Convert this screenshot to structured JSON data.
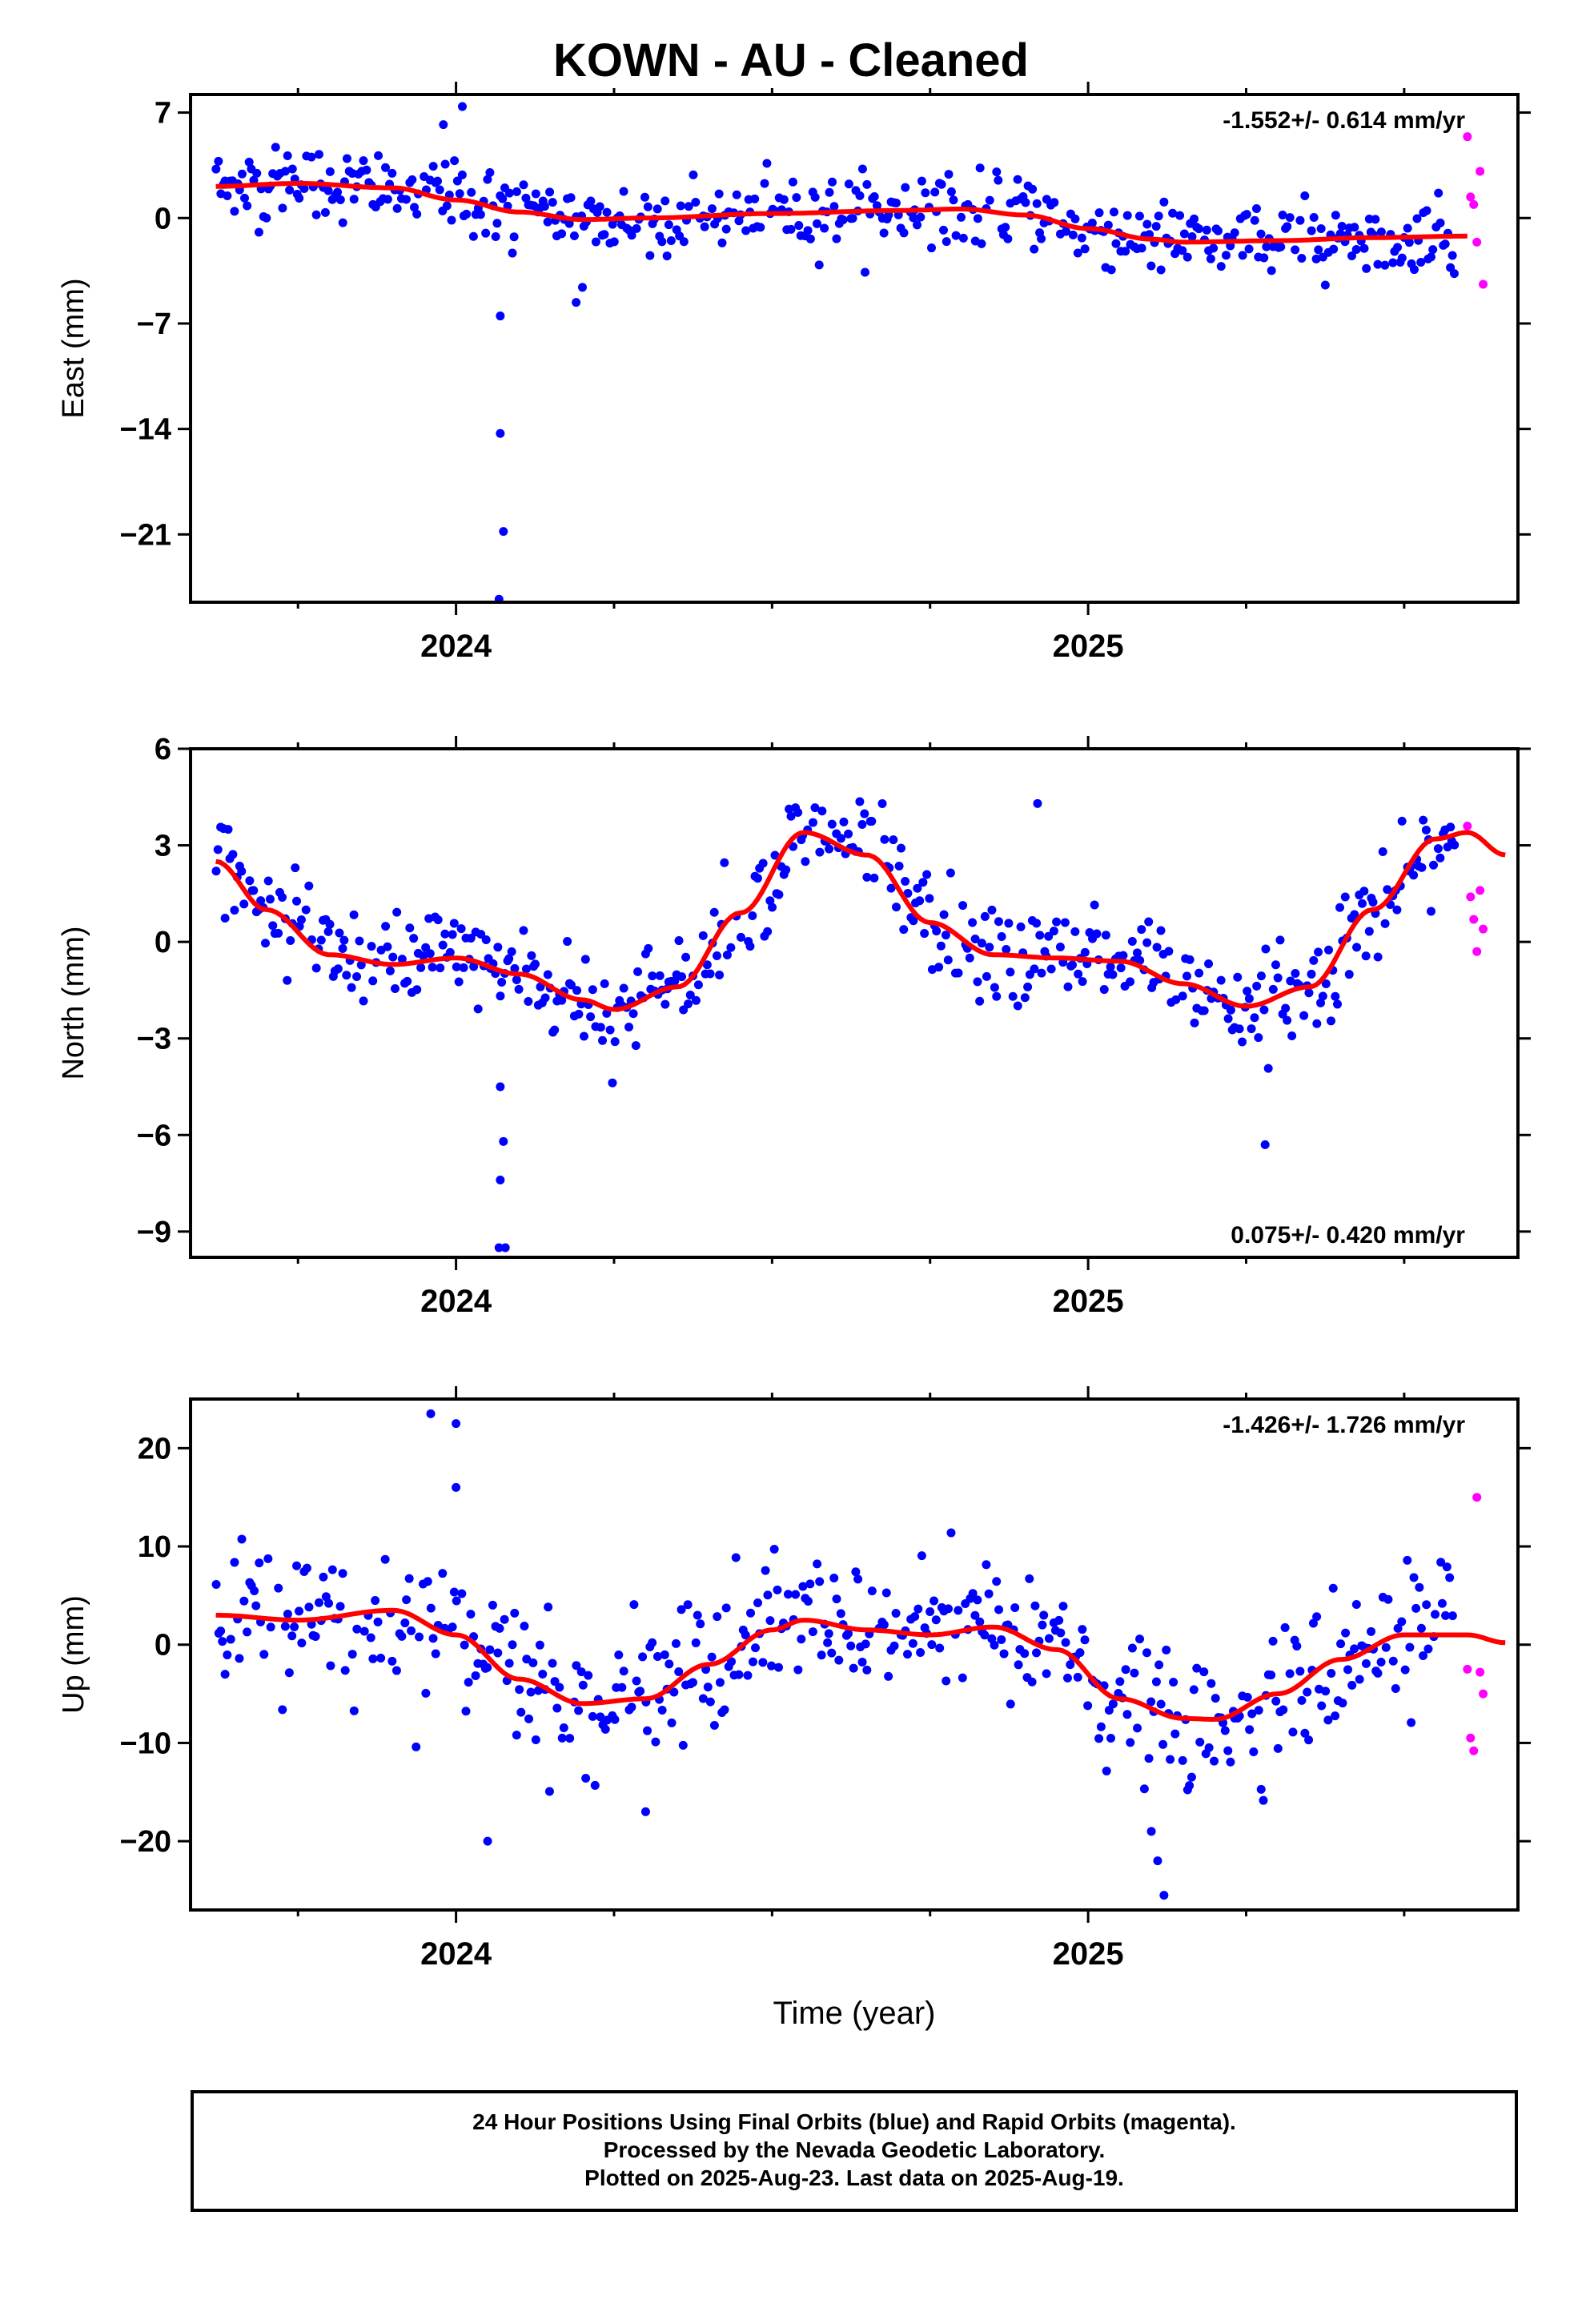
{
  "title": "KOWN  - AU - Cleaned",
  "footer": {
    "line1": "24 Hour Positions Using Final Orbits (blue) and Rapid Orbits (magenta).",
    "line2": "Processed by the Nevada Geodetic Laboratory.",
    "line3": "Plotted on 2025-Aug-23. Last data on 2025-Aug-19."
  },
  "colors": {
    "final": "#0000ff",
    "rapid": "#ff00ff",
    "fit": "#ff0000"
  },
  "chart_data": [
    {
      "type": "scatter",
      "component": "East",
      "ylabel": "East (mm)",
      "xlabel": "",
      "rate_label": "-1.552+/- 0.614 mm/yr",
      "rate_position": "top-right",
      "xlim": [
        2023.58,
        2025.68
      ],
      "ylim": [
        -25.5,
        8.2
      ],
      "yticks": [
        7,
        0,
        -7,
        -14,
        -21
      ],
      "xticks": [
        2024,
        2025
      ],
      "fit_curve": {
        "x": [
          2023.62,
          2023.75,
          2023.9,
          2024.0,
          2024.1,
          2024.2,
          2024.3,
          2024.5,
          2024.7,
          2024.8,
          2024.9,
          2025.0,
          2025.1,
          2025.15,
          2025.3,
          2025.45,
          2025.6
        ],
        "y": [
          2.1,
          2.3,
          2.0,
          1.2,
          0.4,
          -0.1,
          0.0,
          0.3,
          0.5,
          0.6,
          0.2,
          -0.7,
          -1.4,
          -1.6,
          -1.5,
          -1.3,
          -1.2
        ]
      },
      "final_trend_points": {
        "x": [
          2023.62,
          2023.75,
          2023.9,
          2024.0,
          2024.1,
          2024.2,
          2024.3,
          2024.5,
          2024.7,
          2024.8,
          2024.9,
          2025.0,
          2025.1,
          2025.15,
          2025.3,
          2025.45,
          2025.58
        ],
        "y": [
          2.1,
          2.3,
          2.0,
          1.2,
          0.4,
          -0.1,
          0.0,
          0.3,
          0.5,
          0.6,
          0.2,
          -0.7,
          -1.4,
          -1.6,
          -1.5,
          -1.3,
          -1.2
        ]
      },
      "scatter_sd": 1.2,
      "outliers": {
        "x": [
          2024.07,
          2024.07,
          2024.075,
          2024.068,
          2023.98,
          2024.01,
          2024.19,
          2024.2
        ],
        "y": [
          -6.5,
          -14.3,
          -20.8,
          -25.3,
          6.2,
          7.4,
          -5.6,
          -4.6
        ]
      },
      "rapid": {
        "x": [
          2025.6,
          2025.605,
          2025.61,
          2025.615,
          2025.62,
          2025.625
        ],
        "y": [
          5.4,
          1.4,
          0.9,
          -1.6,
          3.1,
          -4.4
        ]
      }
    },
    {
      "type": "scatter",
      "component": "North",
      "ylabel": "North (mm)",
      "xlabel": "",
      "rate_label": "0.075+/- 0.420 mm/yr",
      "rate_position": "bottom-right",
      "xlim": [
        2023.58,
        2025.68
      ],
      "ylim": [
        -9.8,
        6.0
      ],
      "yticks": [
        6,
        3,
        0,
        -3,
        -6,
        -9
      ],
      "xticks": [
        2024,
        2025
      ],
      "fit_curve": {
        "x": [
          2023.62,
          2023.7,
          2023.8,
          2023.9,
          2024.0,
          2024.1,
          2024.2,
          2024.25,
          2024.35,
          2024.45,
          2024.55,
          2024.65,
          2024.75,
          2024.85,
          2024.95,
          2025.05,
          2025.15,
          2025.25,
          2025.35,
          2025.45,
          2025.55,
          2025.6,
          2025.66
        ],
        "y": [
          2.5,
          1.0,
          -0.4,
          -0.7,
          -0.5,
          -1.0,
          -1.8,
          -2.1,
          -1.4,
          0.9,
          3.4,
          2.7,
          0.6,
          -0.4,
          -0.5,
          -0.6,
          -1.3,
          -2.0,
          -1.4,
          1.0,
          3.2,
          3.4,
          2.7
        ]
      },
      "final_trend_points": {
        "x": [
          2023.62,
          2023.7,
          2023.8,
          2023.9,
          2024.0,
          2024.1,
          2024.2,
          2024.25,
          2024.35,
          2024.45,
          2024.55,
          2024.65,
          2024.75,
          2024.85,
          2024.95,
          2025.05,
          2025.15,
          2025.25,
          2025.35,
          2025.45,
          2025.58
        ],
        "y": [
          2.5,
          1.0,
          -0.4,
          -0.7,
          -0.5,
          -1.0,
          -1.8,
          -2.1,
          -1.4,
          0.9,
          3.4,
          2.7,
          0.6,
          -0.4,
          -0.5,
          -0.6,
          -1.3,
          -2.0,
          -1.4,
          1.0,
          3.3
        ]
      },
      "scatter_sd": 0.8,
      "outliers": {
        "x": [
          2024.07,
          2024.07,
          2024.075,
          2024.078,
          2024.068,
          2025.28,
          2024.92
        ],
        "y": [
          -4.5,
          -7.4,
          -6.2,
          -9.5,
          -9.5,
          -6.3,
          4.3
        ]
      },
      "rapid": {
        "x": [
          2025.6,
          2025.605,
          2025.61,
          2025.615,
          2025.62,
          2025.625
        ],
        "y": [
          3.6,
          1.4,
          0.7,
          -0.3,
          1.6,
          0.4
        ]
      }
    },
    {
      "type": "scatter",
      "component": "Up",
      "ylabel": "Up (mm)",
      "xlabel": "Time (year)",
      "rate_label": "-1.426+/- 1.726 mm/yr",
      "rate_position": "top-right",
      "xlim": [
        2023.58,
        2025.68
      ],
      "ylim": [
        -27.0,
        25.0
      ],
      "yticks": [
        20,
        10,
        0,
        -10,
        -20
      ],
      "xticks": [
        2024,
        2025
      ],
      "fit_curve": {
        "x": [
          2023.62,
          2023.75,
          2023.9,
          2024.0,
          2024.1,
          2024.2,
          2024.3,
          2024.4,
          2024.5,
          2024.55,
          2024.65,
          2024.75,
          2024.85,
          2024.95,
          2025.05,
          2025.15,
          2025.2,
          2025.3,
          2025.4,
          2025.5,
          2025.6,
          2025.66
        ],
        "y": [
          3.0,
          2.5,
          3.5,
          1.0,
          -3.5,
          -6.0,
          -5.5,
          -2.0,
          1.5,
          2.5,
          1.5,
          1.0,
          1.8,
          -0.5,
          -5.5,
          -7.5,
          -7.6,
          -5.0,
          -1.5,
          1.0,
          1.0,
          0.2
        ]
      },
      "final_trend_points": {
        "x": [
          2023.62,
          2023.75,
          2023.9,
          2024.0,
          2024.1,
          2024.2,
          2024.3,
          2024.4,
          2024.5,
          2024.55,
          2024.65,
          2024.75,
          2024.85,
          2024.95,
          2025.05,
          2025.15,
          2025.2,
          2025.3,
          2025.4,
          2025.5,
          2025.58
        ],
        "y": [
          3.0,
          2.5,
          3.5,
          1.0,
          -3.5,
          -6.0,
          -5.5,
          -2.0,
          1.5,
          2.5,
          1.5,
          1.0,
          1.8,
          -0.5,
          -5.5,
          -7.5,
          -7.6,
          -5.0,
          -1.5,
          1.0,
          1.0
        ]
      },
      "scatter_sd": 3.5,
      "outliers": {
        "x": [
          2023.96,
          2024.0,
          2024.0,
          2024.05,
          2025.12,
          2025.11,
          2025.1,
          2024.3
        ],
        "y": [
          23.5,
          22.5,
          16.0,
          -20.0,
          -25.5,
          -22.0,
          -19.0,
          -17.0
        ]
      },
      "rapid": {
        "x": [
          2025.6,
          2025.605,
          2025.61,
          2025.615,
          2025.62,
          2025.625
        ],
        "y": [
          -2.5,
          -9.5,
          -10.8,
          15.0,
          -2.8,
          -5.0
        ]
      }
    }
  ]
}
